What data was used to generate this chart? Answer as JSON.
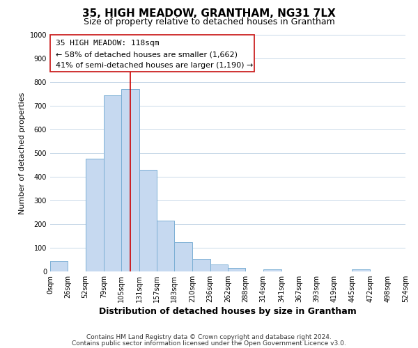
{
  "title": "35, HIGH MEADOW, GRANTHAM, NG31 7LX",
  "subtitle": "Size of property relative to detached houses in Grantham",
  "xlabel": "Distribution of detached houses by size in Grantham",
  "ylabel": "Number of detached properties",
  "bar_edges": [
    0,
    26,
    52,
    79,
    105,
    131,
    157,
    183,
    210,
    236,
    262,
    288,
    314,
    341,
    367,
    393,
    419,
    445,
    472,
    498,
    524
  ],
  "bar_values": [
    44,
    0,
    477,
    745,
    770,
    428,
    215,
    124,
    52,
    29,
    16,
    0,
    8,
    0,
    0,
    0,
    0,
    8,
    0,
    0
  ],
  "bar_color": "#c6d9f0",
  "bar_edge_color": "#7bafd4",
  "property_line_x": 118,
  "property_line_color": "#cc0000",
  "ylim": [
    0,
    1000
  ],
  "yticks": [
    0,
    100,
    200,
    300,
    400,
    500,
    600,
    700,
    800,
    900,
    1000
  ],
  "annotation_line1": "35 HIGH MEADOW: 118sqm",
  "annotation_line2": "← 58% of detached houses are smaller (1,662)",
  "annotation_line3": "41% of semi-detached houses are larger (1,190) →",
  "footer_line1": "Contains HM Land Registry data © Crown copyright and database right 2024.",
  "footer_line2": "Contains public sector information licensed under the Open Government Licence v3.0.",
  "background_color": "#ffffff",
  "grid_color": "#c8d8e8",
  "title_fontsize": 11,
  "subtitle_fontsize": 9,
  "xlabel_fontsize": 9,
  "ylabel_fontsize": 8,
  "tick_label_fontsize": 7,
  "annotation_fontsize": 8,
  "footer_fontsize": 6.5
}
